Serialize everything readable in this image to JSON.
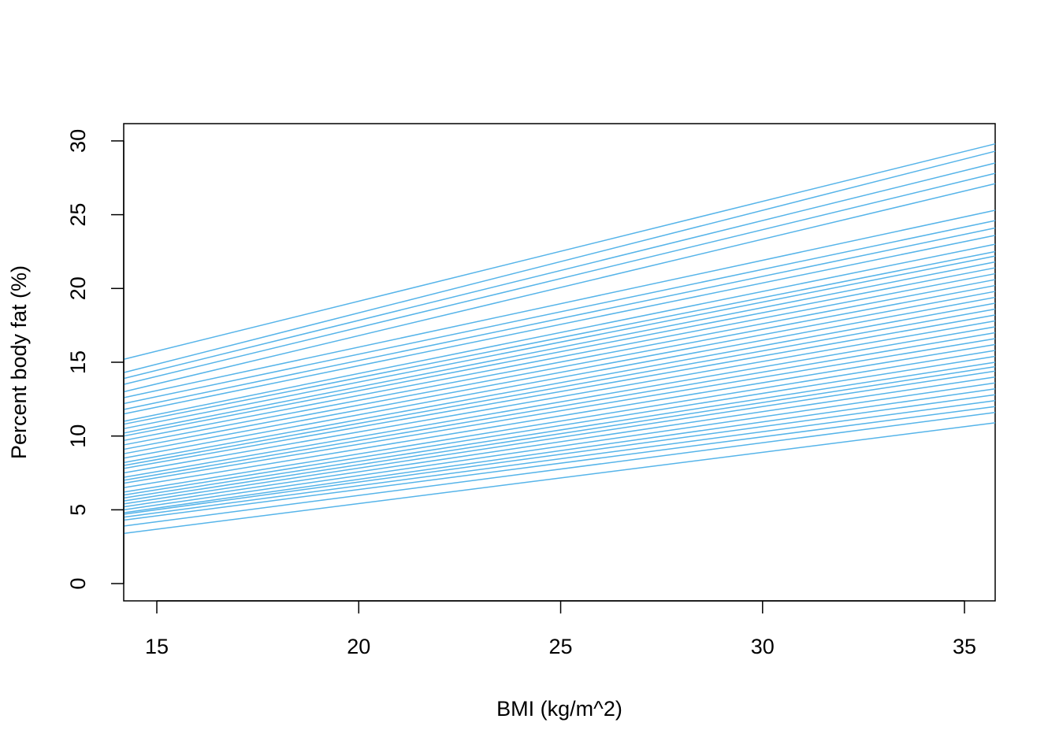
{
  "chart_data": {
    "type": "line",
    "x_label": "BMI (kg/m^2)",
    "y_label": "Percent body fat (%)",
    "x": [
      14.18,
      35.76
    ],
    "color": "#56B4E9",
    "xlim": [
      14.18,
      35.76
    ],
    "ylim": [
      -1.17,
      31.17
    ],
    "xticks": [
      15,
      20,
      25,
      30,
      35
    ],
    "yticks": [
      0,
      5,
      10,
      15,
      20,
      25,
      30
    ],
    "series": [
      {
        "values": [
          15.2,
          29.8
        ]
      },
      {
        "values": [
          14.3,
          29.3
        ]
      },
      {
        "values": [
          13.9,
          28.5
        ]
      },
      {
        "values": [
          13.5,
          27.8
        ]
      },
      {
        "values": [
          13.0,
          27.1
        ]
      },
      {
        "values": [
          12.6,
          25.3
        ]
      },
      {
        "values": [
          12.2,
          24.6
        ]
      },
      {
        "values": [
          11.8,
          24.1
        ]
      },
      {
        "values": [
          11.5,
          23.6
        ]
      },
      {
        "values": [
          11.0,
          23.0
        ]
      },
      {
        "values": [
          10.8,
          22.5
        ]
      },
      {
        "values": [
          10.5,
          22.2
        ]
      },
      {
        "values": [
          10.2,
          21.8
        ]
      },
      {
        "values": [
          10.0,
          21.4
        ]
      },
      {
        "values": [
          9.7,
          21.0
        ]
      },
      {
        "values": [
          9.4,
          20.6
        ]
      },
      {
        "values": [
          9.1,
          20.2
        ]
      },
      {
        "values": [
          8.8,
          19.8
        ]
      },
      {
        "values": [
          8.5,
          19.4
        ]
      },
      {
        "values": [
          8.2,
          19.0
        ]
      },
      {
        "values": [
          8.0,
          18.6
        ]
      },
      {
        "values": [
          7.8,
          18.2
        ]
      },
      {
        "values": [
          7.5,
          17.8
        ]
      },
      {
        "values": [
          7.2,
          17.4
        ]
      },
      {
        "values": [
          7.0,
          17.0
        ]
      },
      {
        "values": [
          6.8,
          16.6
        ]
      },
      {
        "values": [
          6.5,
          16.2
        ]
      },
      {
        "values": [
          6.2,
          15.8
        ]
      },
      {
        "values": [
          6.0,
          15.4
        ]
      },
      {
        "values": [
          5.8,
          15.0
        ]
      },
      {
        "values": [
          5.6,
          14.7
        ]
      },
      {
        "values": [
          5.4,
          14.4
        ]
      },
      {
        "values": [
          5.2,
          14.0
        ]
      },
      {
        "values": [
          5.0,
          13.6
        ]
      },
      {
        "values": [
          4.8,
          13.2
        ]
      },
      {
        "values": [
          4.7,
          12.8
        ]
      },
      {
        "values": [
          4.5,
          12.4
        ]
      },
      {
        "values": [
          4.3,
          12.0
        ]
      },
      {
        "values": [
          3.9,
          11.6
        ]
      },
      {
        "values": [
          3.4,
          10.9
        ]
      }
    ]
  }
}
